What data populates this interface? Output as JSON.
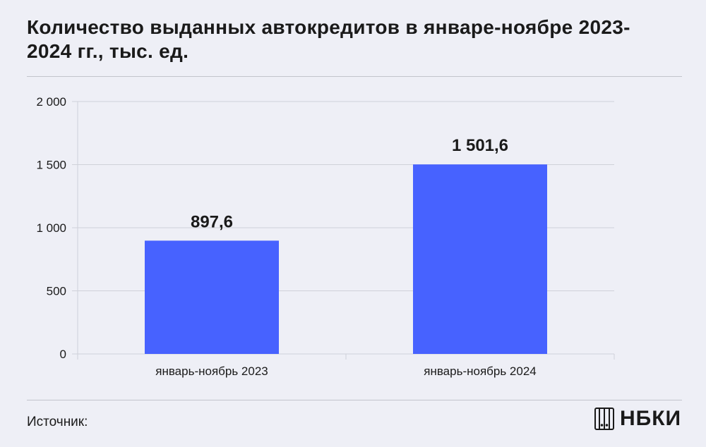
{
  "title": "Количество выданных автокредитов в январе-ноябре 2023-2024 гг., тыс. ед.",
  "source_label": "Источник:",
  "logo_text": "НБКИ",
  "colors": {
    "bar": "#4762ff",
    "grid": "#cfd1d9",
    "background": "#eeeff6"
  },
  "chart_data": {
    "type": "bar",
    "categories": [
      "январь-ноябрь 2023",
      "январь-ноябрь 2024"
    ],
    "values": [
      897.6,
      1501.6
    ],
    "value_labels": [
      "897,6",
      "1 501,6"
    ],
    "ylim": [
      0,
      2000
    ],
    "yticks": [
      0,
      500,
      1000,
      1500,
      2000
    ],
    "ytick_labels": [
      "0",
      "500",
      "1 000",
      "1 500",
      "2 000"
    ],
    "grid": true
  }
}
